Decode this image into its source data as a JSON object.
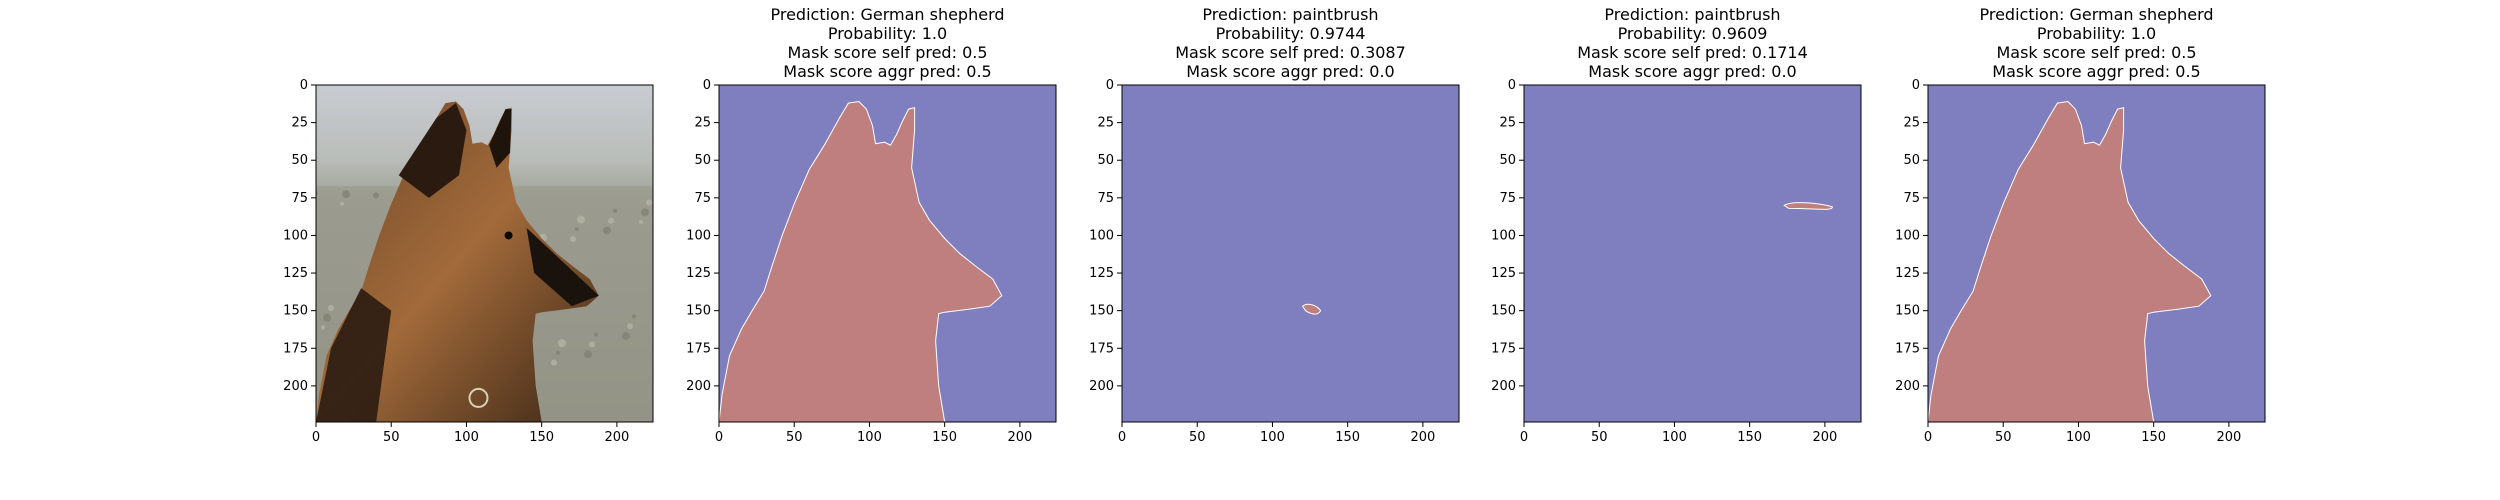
{
  "chart_data": [
    {
      "type": "image",
      "image_subject": "German shepherd dog photo",
      "title": [],
      "xlim": [
        0,
        224
      ],
      "ylim": [
        224,
        0
      ],
      "xticks": [
        0,
        50,
        100,
        150,
        200
      ],
      "yticks": [
        0,
        25,
        50,
        75,
        100,
        125,
        150,
        175,
        200
      ]
    },
    {
      "type": "heatmap",
      "title": [
        "Prediction: German shepherd",
        "Probability: 1.0",
        "Mask score self pred: 0.5",
        "Mask score aggr pred: 0.5"
      ],
      "xlim": [
        0,
        224
      ],
      "ylim": [
        224,
        0
      ],
      "xticks": [
        0,
        50,
        100,
        150,
        200
      ],
      "yticks": [
        0,
        25,
        50,
        75,
        100,
        125,
        150,
        175,
        200
      ],
      "mask_region": "dog-silhouette",
      "colors": {
        "background": "#7f7fc0",
        "mask": "#c07f7f"
      }
    },
    {
      "type": "heatmap",
      "title": [
        "Prediction: paintbrush",
        "Probability: 0.9744",
        "Mask score self pred: 0.3087",
        "Mask score aggr pred: 0.0"
      ],
      "xlim": [
        0,
        224
      ],
      "ylim": [
        224,
        0
      ],
      "xticks": [
        0,
        50,
        100,
        150,
        200
      ],
      "yticks": [
        0,
        25,
        50,
        75,
        100,
        125,
        150,
        175,
        200
      ],
      "mask_region": "small blob near x≈125, y≈150",
      "colors": {
        "background": "#7f7fc0",
        "mask": "#c07f7f"
      }
    },
    {
      "type": "heatmap",
      "title": [
        "Prediction: paintbrush",
        "Probability: 0.9609",
        "Mask score self pred: 0.1714",
        "Mask score aggr pred: 0.0"
      ],
      "xlim": [
        0,
        224
      ],
      "ylim": [
        224,
        0
      ],
      "xticks": [
        0,
        50,
        100,
        150,
        200
      ],
      "yticks": [
        0,
        25,
        50,
        75,
        100,
        125,
        150,
        175,
        200
      ],
      "mask_region": "thin streak near x≈175–205, y≈80",
      "colors": {
        "background": "#7f7fc0",
        "mask": "#c07f7f"
      }
    },
    {
      "type": "heatmap",
      "title": [
        "Prediction: German shepherd",
        "Probability: 1.0",
        "Mask score self pred: 0.5",
        "Mask score aggr pred: 0.5"
      ],
      "xlim": [
        0,
        224
      ],
      "ylim": [
        224,
        0
      ],
      "xticks": [
        0,
        50,
        100,
        150,
        200
      ],
      "yticks": [
        0,
        25,
        50,
        75,
        100,
        125,
        150,
        175,
        200
      ],
      "mask_region": "dog-silhouette",
      "colors": {
        "background": "#7f7fc0",
        "mask": "#c07f7f"
      }
    }
  ]
}
